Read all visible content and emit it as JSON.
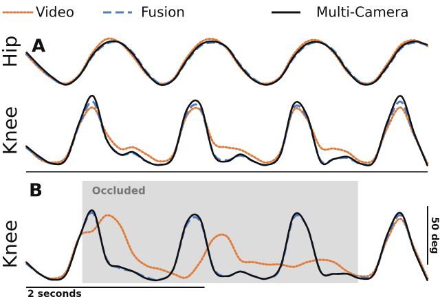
{
  "legend": [
    {
      "name": "Video",
      "color": "#e07b39",
      "style": "dotted"
    },
    {
      "name": "Fusion",
      "color": "#4a7cc9",
      "style": "dashed"
    },
    {
      "name": "Multi-Camera",
      "color": "#111111",
      "style": "solid"
    }
  ],
  "chart_data": [
    {
      "type": "line",
      "panel": "A",
      "ylabel": "Hip",
      "ylim": [
        0,
        45
      ],
      "x": [
        0,
        0.15,
        0.3,
        0.45,
        0.6,
        0.75,
        0.9,
        1.05,
        1.2,
        1.35,
        1.5,
        1.65,
        1.8,
        1.95,
        2.1,
        2.25,
        2.4,
        2.55,
        2.7,
        2.85,
        3.0,
        3.15,
        3.3,
        3.45,
        3.6,
        3.75,
        3.9,
        4.05,
        4.2,
        4.35,
        4.5
      ],
      "xlim": [
        0,
        4.5
      ],
      "series": [
        {
          "color": "#e07b39",
          "style": "dotted",
          "values": [
            30,
            18,
            9,
            5,
            13,
            32,
            43,
            40,
            28,
            13,
            5,
            9,
            27,
            40,
            43,
            35,
            19,
            8,
            5,
            11,
            30,
            41,
            41,
            31,
            15,
            6,
            7,
            22,
            38,
            42,
            37
          ]
        },
        {
          "color": "#4a7cc9",
          "style": "dashed",
          "values": [
            31,
            19,
            9,
            4,
            12,
            29,
            39,
            40,
            31,
            15,
            5,
            8,
            24,
            37,
            40,
            36,
            21,
            9,
            4,
            10,
            27,
            38,
            40,
            33,
            17,
            6,
            6,
            19,
            35,
            40,
            38
          ]
        },
        {
          "color": "#111111",
          "style": "solid",
          "values": [
            32,
            20,
            10,
            4,
            12,
            30,
            40,
            40,
            30,
            14,
            4,
            8,
            25,
            38,
            41,
            36,
            20,
            8,
            4,
            10,
            28,
            39,
            40,
            32,
            16,
            5,
            6,
            20,
            36,
            41,
            38
          ]
        }
      ]
    },
    {
      "type": "line",
      "ylabel": "Knee",
      "ylim": [
        0,
        68
      ],
      "x": [
        0,
        0.15,
        0.3,
        0.45,
        0.6,
        0.75,
        0.9,
        1.05,
        1.2,
        1.35,
        1.5,
        1.65,
        1.8,
        1.95,
        2.1,
        2.25,
        2.4,
        2.55,
        2.7,
        2.85,
        3.0,
        3.15,
        3.3,
        3.45,
        3.6,
        3.75,
        3.9,
        4.05,
        4.2,
        4.35,
        4.5
      ],
      "xlim": [
        0,
        4.5
      ],
      "series": [
        {
          "color": "#e07b39",
          "style": "dotted",
          "values": [
            19,
            8,
            5,
            10,
            38,
            52,
            30,
            17,
            18,
            12,
            6,
            12,
            45,
            50,
            22,
            18,
            16,
            10,
            5,
            14,
            50,
            42,
            18,
            17,
            14,
            6,
            8,
            35,
            52,
            28,
            4
          ]
        },
        {
          "color": "#4a7cc9",
          "style": "dashed",
          "values": [
            18,
            9,
            4,
            8,
            38,
            57,
            25,
            12,
            13,
            6,
            3,
            10,
            47,
            52,
            13,
            7,
            11,
            6,
            3,
            12,
            52,
            43,
            7,
            8,
            9,
            4,
            6,
            38,
            57,
            29,
            3
          ]
        },
        {
          "color": "#111111",
          "style": "solid",
          "values": [
            19,
            10,
            4,
            8,
            40,
            62,
            25,
            12,
            14,
            6,
            3,
            10,
            50,
            55,
            12,
            6,
            12,
            6,
            3,
            12,
            55,
            45,
            6,
            8,
            10,
            4,
            6,
            40,
            62,
            30,
            2
          ]
        }
      ]
    },
    {
      "type": "line",
      "panel": "B",
      "ylabel": "Knee",
      "ylim": [
        0,
        68
      ],
      "x": [
        0,
        0.15,
        0.3,
        0.45,
        0.6,
        0.75,
        0.9,
        1.05,
        1.2,
        1.35,
        1.5,
        1.65,
        1.8,
        1.95,
        2.1,
        2.25,
        2.4,
        2.55,
        2.7,
        2.85,
        3.0,
        3.15,
        3.3,
        3.45,
        3.6,
        3.75,
        3.9,
        4.05,
        4.2,
        4.35,
        4.5
      ],
      "xlim": [
        0,
        4.5
      ],
      "shade": {
        "x": [
          0.63,
          3.72
        ],
        "label": "Occluded"
      },
      "xscalebar": {
        "value": 2,
        "label": "2 seconds"
      },
      "yscalebar": {
        "value": 50,
        "label": "50 deg"
      },
      "series": [
        {
          "color": "#e07b39",
          "style": "dotted",
          "values": [
            18,
            8,
            4,
            10,
            40,
            45,
            58,
            50,
            25,
            15,
            12,
            8,
            5,
            18,
            38,
            40,
            20,
            18,
            16,
            16,
            14,
            18,
            20,
            18,
            10,
            6,
            10,
            38,
            55,
            30,
            4
          ]
        },
        {
          "color": "#4a7cc9",
          "style": "dashed",
          "values": [
            17,
            8,
            3,
            8,
            40,
            60,
            21,
            13,
            10,
            5,
            3,
            12,
            50,
            53,
            13,
            6,
            10,
            6,
            4,
            13,
            56,
            48,
            10,
            8,
            8,
            5,
            8,
            40,
            58,
            28,
            3
          ]
        },
        {
          "color": "#111111",
          "style": "solid",
          "values": [
            18,
            8,
            3,
            8,
            40,
            62,
            20,
            14,
            10,
            4,
            3,
            12,
            52,
            55,
            12,
            6,
            10,
            6,
            4,
            14,
            58,
            48,
            10,
            8,
            8,
            4,
            8,
            42,
            60,
            28,
            2
          ]
        }
      ]
    }
  ]
}
